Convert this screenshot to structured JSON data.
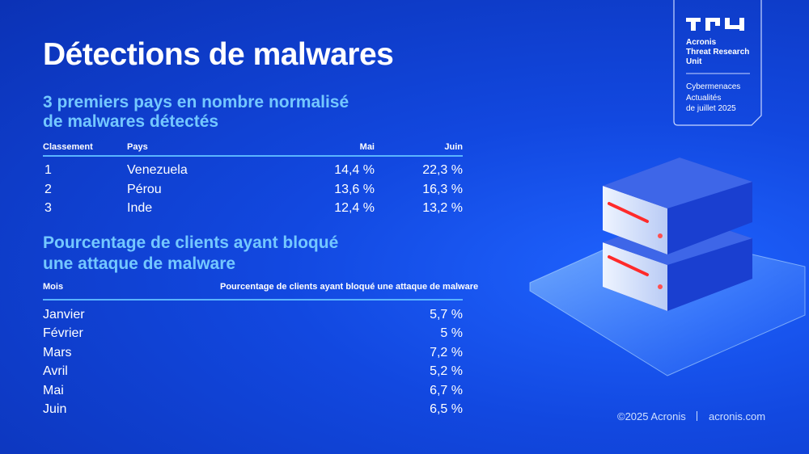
{
  "title": "Détections de malwares",
  "section1": {
    "heading_lines": [
      "3 premiers pays en nombre normalisé",
      "de malwares détectés"
    ],
    "table": {
      "columns": [
        "Classement",
        "Pays",
        "Mai",
        "Juin"
      ],
      "rows": [
        [
          "1",
          "Venezuela",
          "14,4 %",
          "22,3 %"
        ],
        [
          "2",
          "Pérou",
          "13,6 %",
          "16,3 %"
        ],
        [
          "3",
          "Inde",
          "12,4 %",
          "13,2 %"
        ]
      ]
    }
  },
  "section2": {
    "heading_lines": [
      "Pourcentage de clients ayant bloqué",
      "une attaque de malware"
    ],
    "table": {
      "columns": [
        "Mois",
        "Pourcentage de clients ayant bloqué une attaque de malware"
      ],
      "rows": [
        [
          "Janvier",
          "5,7 %"
        ],
        [
          "Février",
          "5 %"
        ],
        [
          "Mars",
          "7,2 %"
        ],
        [
          "Avril",
          "5,2 %"
        ],
        [
          "Mai",
          "6,7 %"
        ],
        [
          "Juin",
          "6,5 %"
        ]
      ]
    }
  },
  "brand": {
    "unit_lines": [
      "Acronis",
      "Threat Research",
      "Unit"
    ],
    "report_lines": [
      "Cybermenaces",
      "Actualités",
      "de juillet 2025"
    ]
  },
  "footer": {
    "copyright": "©2025 Acronis",
    "site": "acronis.com"
  }
}
